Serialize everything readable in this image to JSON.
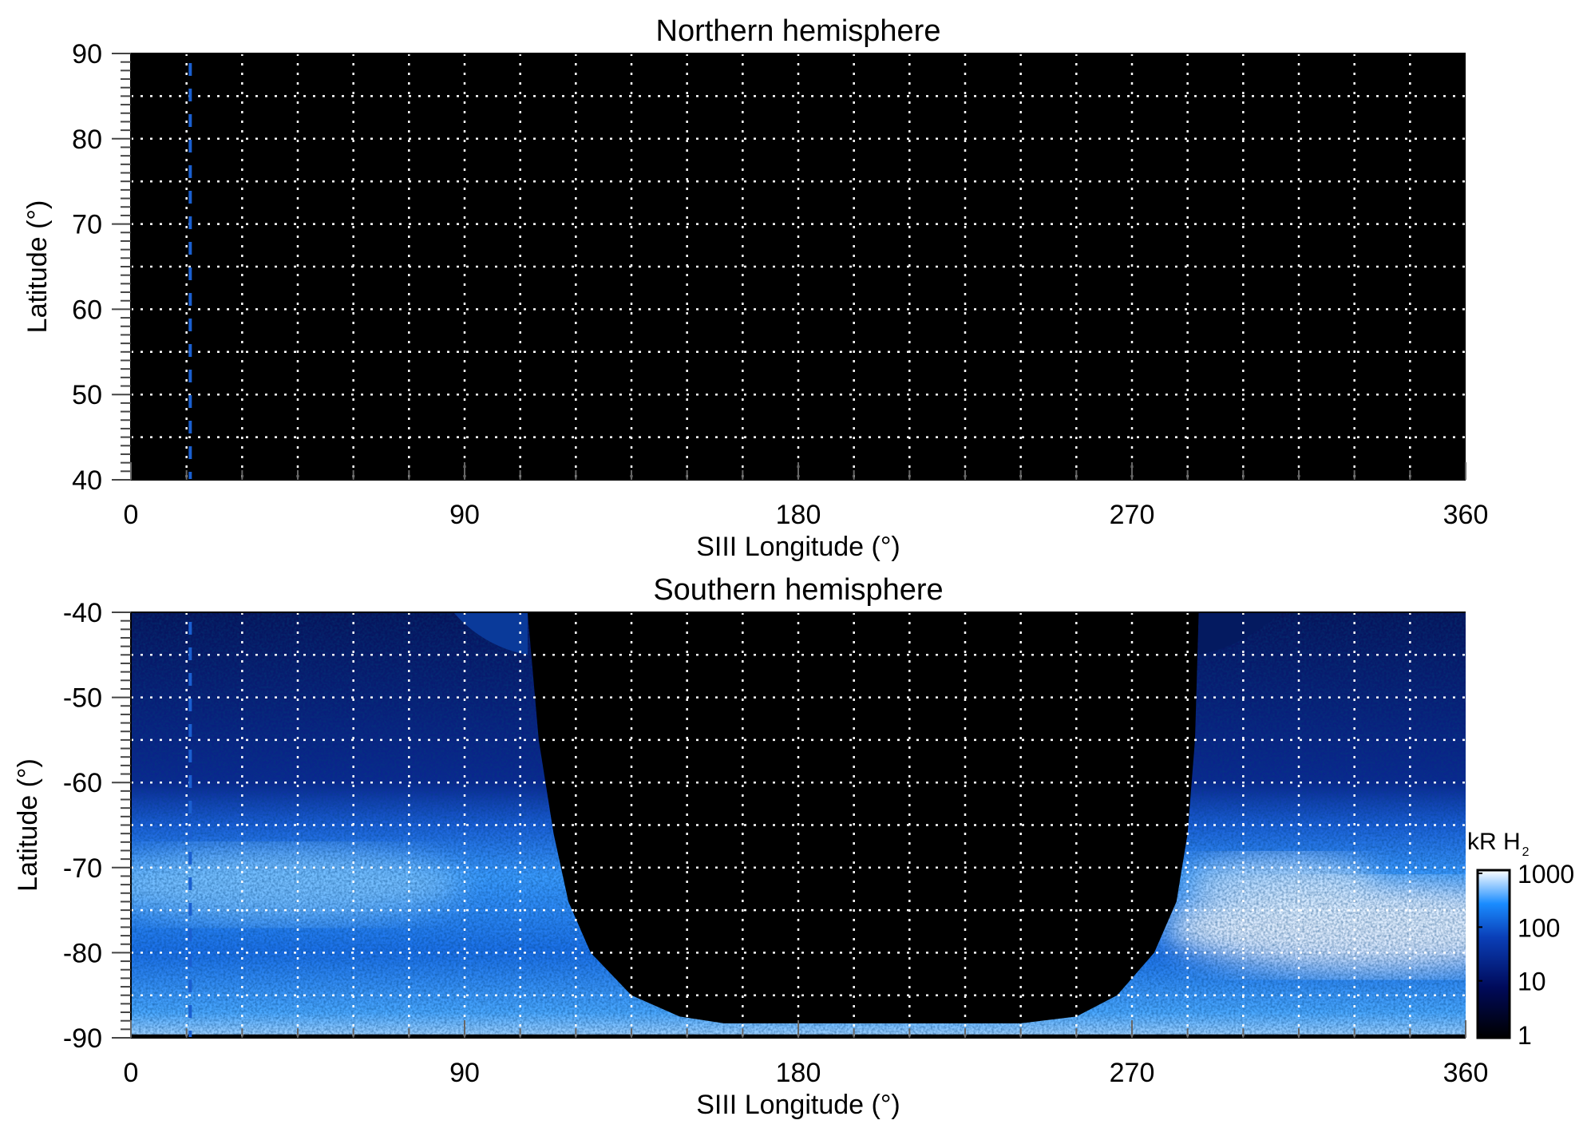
{
  "chart_data": [
    {
      "type": "heatmap",
      "title": "Northern hemisphere",
      "xlabel": "SIII Longitude (°)",
      "ylabel": "Latitude (°)",
      "xlim": [
        0,
        360
      ],
      "ylim": [
        40,
        90
      ],
      "xticks": [
        "0",
        "90",
        "180",
        "270",
        "360"
      ],
      "yticks": [
        "90",
        "80",
        "70",
        "60",
        "50",
        "40"
      ],
      "grid": true,
      "grid_style": "dotted white, every 15° longitude and 5° latitude",
      "content": "no emission (all black)",
      "marker_line": {
        "longitude": 16,
        "style": "dashed",
        "color": "#1a5fd0"
      }
    },
    {
      "type": "heatmap",
      "title": "Southern hemisphere",
      "xlabel": "SIII Longitude (°)",
      "ylabel": "Latitude (°)",
      "xlim": [
        0,
        360
      ],
      "ylim": [
        -90,
        -40
      ],
      "xticks": [
        "0",
        "90",
        "180",
        "270",
        "360"
      ],
      "yticks": [
        "-40",
        "-50",
        "-60",
        "-70",
        "-80",
        "-90"
      ],
      "grid": true,
      "marker_line": {
        "longitude": 16,
        "style": "dashed",
        "color": "#1a5fd0"
      },
      "no_data_region": "longitude ~107–288 (black), narrowing to ~-88 latitude",
      "colorbar": {
        "label": "kR H",
        "label_sub": "2",
        "scale": "log",
        "range": [
          1,
          1000
        ],
        "ticks": [
          "1000",
          "100",
          "10",
          "1"
        ],
        "colors": [
          "#000000",
          "#000a5a",
          "#0a3fb8",
          "#1a8cff",
          "#ffffff"
        ]
      }
    }
  ]
}
